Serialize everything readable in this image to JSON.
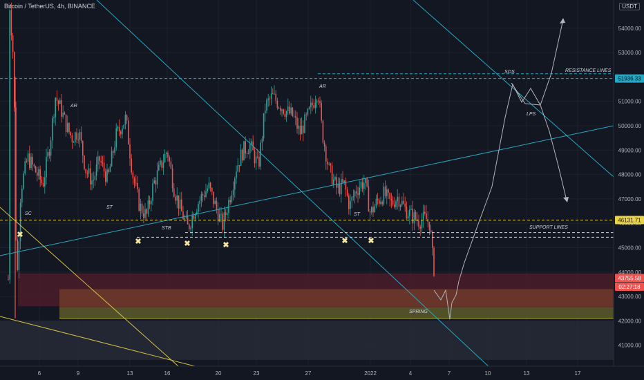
{
  "header": {
    "symbol": "Bitcoin / TetherUS, 4h, BINANCE",
    "currency_button": "USDT"
  },
  "colors": {
    "background": "#131722",
    "up": "#26a69a",
    "down": "#ef5350",
    "trend": "#26a7c2",
    "yellow_line": "#d4c245",
    "dashed_yellow": "#e8d34a",
    "dashed_white": "#d1d4dc",
    "projection": "#b2b5be",
    "text": "#d1d4dc",
    "axis_text": "#b2b5be"
  },
  "chart_data": {
    "type": "candlestick",
    "symbol": "Bitcoin / TetherUS",
    "interval": "4h",
    "exchange": "BINANCE",
    "x_tick_labels": [
      "6",
      "9",
      "13",
      "16",
      "20",
      "23",
      "27",
      "2022",
      "4",
      "7",
      "10",
      "13",
      "17"
    ],
    "y_tick_labels": [
      "41000.00",
      "42000.00",
      "43000.00",
      "44000.00",
      "45000.00",
      "46000.00",
      "47000.00",
      "48000.00",
      "49000.00",
      "50000.00",
      "51000.00",
      "52000.00",
      "53000.00",
      "54000.00"
    ],
    "ylim": [
      40400,
      55500
    ],
    "price_markers": [
      {
        "label": "51936.33",
        "value": 51936.33,
        "color": "#26a7c2",
        "text_color": "#131722"
      },
      {
        "label": "46131.71",
        "value": 46131.71,
        "color": "#e8d34a",
        "text_color": "#131722"
      },
      {
        "label": "43755.58",
        "value": 43755.58,
        "color": "#ef5350",
        "text_color": "#ffffff"
      },
      {
        "label": "02:27:18",
        "value": 43400,
        "color": "#ef5350",
        "text_color": "#ffffff"
      }
    ],
    "levels": [
      {
        "name": "RESISTANCE LINES",
        "value": 51936,
        "style": "dashed",
        "color": "#26a7c2"
      },
      {
        "name": "RESISTANCE LINES",
        "value": 52130,
        "style": "dashed",
        "color": "#26a7c2"
      },
      {
        "name": "SUPPORT LINES",
        "value": 46131,
        "style": "dashed",
        "color": "#e8d34a"
      },
      {
        "name": "SUPPORT LINES",
        "value": 45620,
        "style": "dashed",
        "color": "#d1d4dc"
      },
      {
        "name": "SUPPORT LINES",
        "value": 45430,
        "style": "dashed",
        "color": "#d1d4dc"
      }
    ],
    "zones": [
      {
        "from": 42600,
        "to": 43950,
        "color": "#4a1c28"
      },
      {
        "from": 42550,
        "to": 43300,
        "color": "#6e3a2a"
      },
      {
        "from": 42100,
        "to": 42550,
        "color": "#5c5a2a"
      },
      {
        "from": 40400,
        "to": 42000,
        "color": "#262a36"
      }
    ],
    "annotations": [
      {
        "text": "SC",
        "x": 36,
        "y": 311
      },
      {
        "text": "AR",
        "x": 102,
        "y": 155
      },
      {
        "text": "ST",
        "x": 154,
        "y": 302
      },
      {
        "text": "STB",
        "x": 234,
        "y": 332
      },
      {
        "text": "AR",
        "x": 462,
        "y": 127
      },
      {
        "text": "ST",
        "x": 512,
        "y": 312
      },
      {
        "text": "SOS",
        "x": 730,
        "y": 106
      },
      {
        "text": "LPS",
        "x": 762,
        "y": 167
      },
      {
        "text": "SPRING",
        "x": 592,
        "y": 453
      },
      {
        "text": "RESISTANCE LINES",
        "x": 818,
        "y": 104
      },
      {
        "text": "SUPPORT LINES",
        "x": 766,
        "y": 331
      }
    ],
    "markers": [
      "✖",
      "✖",
      "✖",
      "✖",
      "✖",
      "✖"
    ],
    "projection_path": [
      [
        628,
        420
      ],
      [
        638,
        434
      ],
      [
        645,
        420
      ],
      [
        651,
        462
      ],
      [
        654,
        438
      ],
      [
        660,
        427
      ],
      [
        664,
        407
      ],
      [
        672,
        380
      ],
      [
        690,
        330
      ],
      [
        712,
        270
      ],
      [
        731,
        170
      ],
      [
        742,
        122
      ],
      [
        755,
        148
      ],
      [
        768,
        128
      ],
      [
        782,
        152
      ],
      [
        798,
        106
      ],
      [
        815,
        28
      ]
    ],
    "projection_alt": [
      [
        740,
        120
      ],
      [
        760,
        150
      ],
      [
        782,
        152
      ],
      [
        795,
        190
      ],
      [
        808,
        240
      ],
      [
        820,
        290
      ]
    ]
  }
}
